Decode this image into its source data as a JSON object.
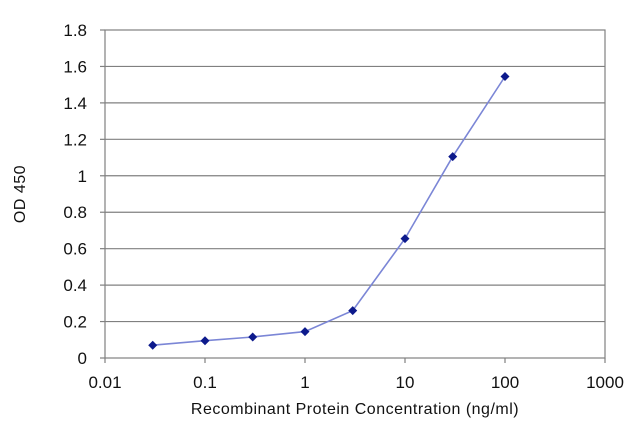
{
  "chart_data": {
    "type": "line",
    "title": "",
    "xlabel": "Recombinant Protein Concentration (ng/ml)",
    "ylabel": "OD 450",
    "x_scale": "log",
    "xlim": [
      0.01,
      1000
    ],
    "ylim": [
      0,
      1.8
    ],
    "x_ticks": [
      "0.01",
      "0.1",
      "1",
      "10",
      "100",
      "1000"
    ],
    "y_ticks": [
      "0",
      "0.2",
      "0.4",
      "0.6",
      "0.8",
      "1",
      "1.2",
      "1.4",
      "1.6",
      "1.8"
    ],
    "grid": "horizontal",
    "legend": "none",
    "series": [
      {
        "x": [
          0.03,
          0.1,
          0.3,
          1,
          3,
          10,
          30,
          100
        ],
        "y": [
          0.07,
          0.095,
          0.115,
          0.145,
          0.26,
          0.655,
          1.105,
          1.545
        ],
        "line_color": "#7b86d6",
        "marker_color": "#0d1a8c"
      }
    ],
    "plot_background": "#ffffff",
    "grid_color": "#808080"
  }
}
